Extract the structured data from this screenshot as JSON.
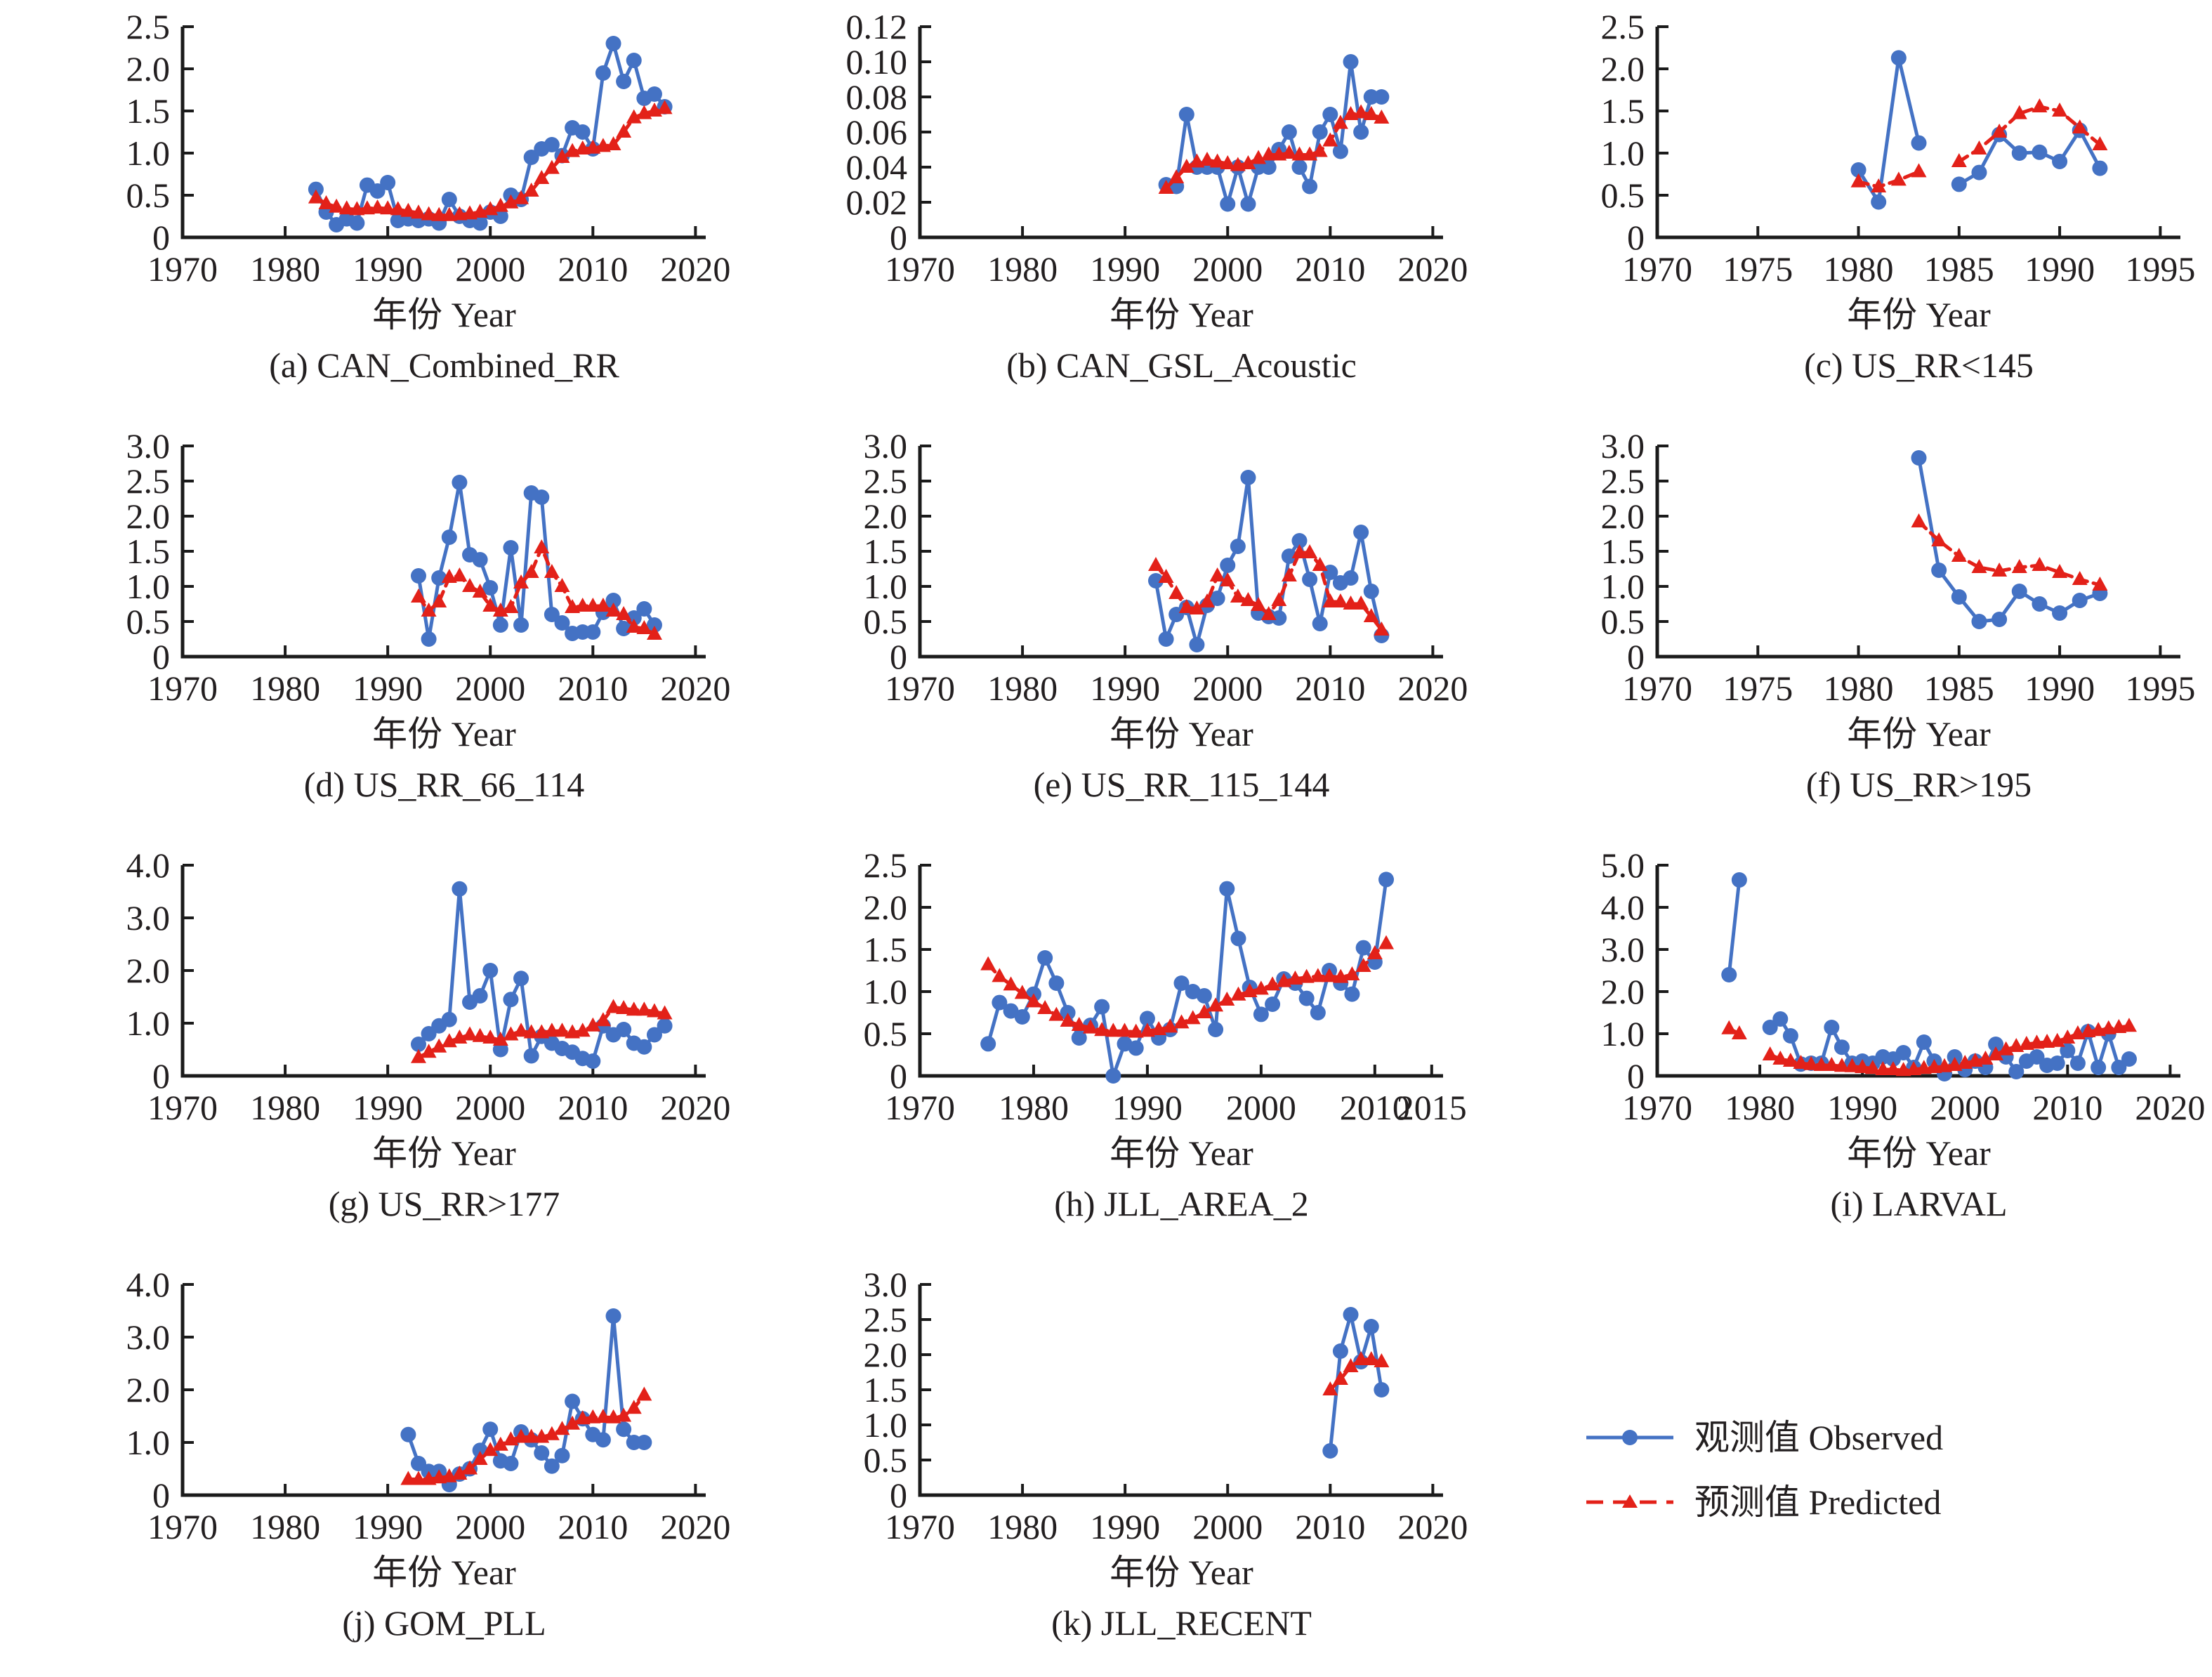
{
  "colors": {
    "observed": "#4472c4",
    "predicted": "#e32119",
    "axis": "#1b1b1b",
    "text": "#231f20"
  },
  "legend": {
    "observed_label": "观测值 Observed",
    "predicted_label": "预测值 Predicted"
  },
  "chart_data": [
    {
      "type": "line",
      "caption": "(a) CAN_Combined_RR",
      "xlabel": "年份 Year",
      "xlim": [
        1970,
        2021
      ],
      "xticks": [
        1970,
        1980,
        1990,
        2000,
        2010,
        2020
      ],
      "ylim": [
        0,
        2.5
      ],
      "yticks": [
        0,
        0.5,
        1.0,
        1.5,
        2.0,
        2.5
      ],
      "ytick_labels": [
        "0",
        "0.5",
        "1.0",
        "1.5",
        "2.0",
        "2.5"
      ],
      "series": [
        {
          "name": "观测值 Observed",
          "start_year": 1983,
          "values": [
            0.57,
            0.3,
            0.15,
            0.22,
            0.17,
            0.62,
            0.55,
            0.65,
            0.2,
            0.22,
            0.2,
            0.22,
            0.17,
            0.45,
            0.25,
            0.2,
            0.17,
            0.3,
            0.25,
            0.5,
            0.45,
            0.95,
            1.05,
            1.1,
            0.97,
            1.3,
            1.25,
            1.05,
            1.95,
            2.3,
            1.85,
            2.1,
            1.65,
            1.7,
            1.55
          ]
        },
        {
          "name": "预测值 Predicted",
          "start_year": 1983,
          "values": [
            0.47,
            0.4,
            0.36,
            0.34,
            0.33,
            0.34,
            0.35,
            0.34,
            0.33,
            0.31,
            0.29,
            0.27,
            0.26,
            0.26,
            0.27,
            0.28,
            0.3,
            0.33,
            0.37,
            0.41,
            0.46,
            0.55,
            0.7,
            0.82,
            0.95,
            1.02,
            1.05,
            1.06,
            1.08,
            1.1,
            1.25,
            1.42,
            1.47,
            1.5,
            1.53
          ]
        }
      ]
    },
    {
      "type": "line",
      "caption": "(b) CAN_GSL_Acoustic",
      "xlabel": "年份 Year",
      "xlim": [
        1970,
        2021
      ],
      "xticks": [
        1970,
        1980,
        1990,
        2000,
        2010,
        2020
      ],
      "ylim": [
        0,
        0.12
      ],
      "yticks": [
        0,
        0.02,
        0.04,
        0.06,
        0.08,
        0.1,
        0.12
      ],
      "ytick_labels": [
        "0",
        "0.02",
        "0.04",
        "0.06",
        "0.08",
        "0.10",
        "0.12"
      ],
      "series": [
        {
          "name": "观测值 Observed",
          "start_year": 1994,
          "values": [
            0.03,
            0.029,
            0.07,
            0.04,
            0.04,
            0.04,
            0.019,
            0.04,
            0.019,
            0.04,
            0.04,
            0.05,
            0.06,
            0.04,
            0.029,
            0.06,
            0.07,
            0.049,
            0.1,
            0.06,
            0.08,
            0.08
          ]
        },
        {
          "name": "预测值 Predicted",
          "start_year": 1994,
          "values": [
            0.028,
            0.034,
            0.04,
            0.043,
            0.044,
            0.043,
            0.042,
            0.041,
            0.042,
            0.045,
            0.047,
            0.047,
            0.048,
            0.047,
            0.047,
            0.049,
            0.055,
            0.065,
            0.07,
            0.071,
            0.07,
            0.068
          ]
        }
      ]
    },
    {
      "type": "line",
      "caption": "(c) US_RR<145",
      "xlabel": "年份 Year",
      "xlim": [
        1970,
        1996
      ],
      "xticks": [
        1970,
        1975,
        1980,
        1985,
        1990,
        1995
      ],
      "ylim": [
        0,
        2.5
      ],
      "yticks": [
        0,
        0.5,
        1.0,
        1.5,
        2.0,
        2.5
      ],
      "ytick_labels": [
        "0",
        "0.5",
        "1.0",
        "1.5",
        "2.0",
        "2.5"
      ],
      "series": [
        {
          "name": "观测值 Observed",
          "start_year": 1980,
          "values": [
            0.8,
            0.42,
            2.13,
            1.12,
            null,
            0.63,
            0.77,
            1.22,
            1.0,
            1.01,
            0.9,
            1.27,
            0.82
          ]
        },
        {
          "name": "预测值 Predicted",
          "start_year": 1980,
          "values": [
            0.66,
            0.6,
            0.68,
            0.78,
            null,
            0.9,
            1.05,
            1.25,
            1.47,
            1.55,
            1.5,
            1.3,
            1.1
          ]
        }
      ]
    },
    {
      "type": "line",
      "caption": "(d) US_RR_66_114",
      "xlabel": "年份 Year",
      "xlim": [
        1970,
        2021
      ],
      "xticks": [
        1970,
        1980,
        1990,
        2000,
        2010,
        2020
      ],
      "ylim": [
        0,
        3.0
      ],
      "yticks": [
        0,
        0.5,
        1.0,
        1.5,
        2.0,
        2.5,
        3.0
      ],
      "ytick_labels": [
        "0",
        "0.5",
        "1.0",
        "1.5",
        "2.0",
        "2.5",
        "3.0"
      ],
      "series": [
        {
          "name": "观测值 Observed",
          "start_year": 1993,
          "values": [
            1.15,
            0.25,
            1.12,
            1.7,
            2.48,
            1.45,
            1.38,
            0.98,
            0.45,
            1.55,
            0.45,
            2.33,
            2.27,
            0.6,
            0.48,
            0.33,
            0.35,
            0.35,
            0.63,
            0.8,
            0.4,
            0.55,
            0.68,
            0.45
          ]
        },
        {
          "name": "预测值 Predicted",
          "start_year": 1993,
          "values": [
            0.85,
            0.65,
            0.78,
            1.13,
            1.15,
            1.0,
            0.92,
            0.72,
            0.65,
            0.7,
            1.05,
            1.2,
            1.55,
            1.2,
            1.0,
            0.7,
            0.72,
            0.72,
            0.72,
            0.65,
            0.6,
            0.42,
            0.4,
            0.32
          ]
        }
      ]
    },
    {
      "type": "line",
      "caption": "(e) US_RR_115_144",
      "xlabel": "年份 Year",
      "xlim": [
        1970,
        2021
      ],
      "xticks": [
        1970,
        1980,
        1990,
        2000,
        2010,
        2020
      ],
      "ylim": [
        0,
        3.0
      ],
      "yticks": [
        0,
        0.5,
        1.0,
        1.5,
        2.0,
        2.5,
        3.0
      ],
      "ytick_labels": [
        "0",
        "0.5",
        "1.0",
        "1.5",
        "2.0",
        "2.5",
        "3.0"
      ],
      "series": [
        {
          "name": "观测值 Observed",
          "start_year": 1993,
          "values": [
            1.08,
            0.25,
            0.6,
            0.7,
            0.17,
            0.73,
            0.83,
            1.3,
            1.57,
            2.55,
            0.62,
            0.57,
            0.55,
            1.43,
            1.65,
            1.1,
            0.47,
            1.2,
            1.05,
            1.12,
            1.77,
            0.93,
            0.3
          ]
        },
        {
          "name": "预测值 Predicted",
          "start_year": 1993,
          "values": [
            1.3,
            1.13,
            0.9,
            0.7,
            0.68,
            0.78,
            1.15,
            1.08,
            0.85,
            0.8,
            0.73,
            0.6,
            0.8,
            1.15,
            1.48,
            1.48,
            1.3,
            0.78,
            0.78,
            0.75,
            0.75,
            0.57,
            0.38
          ]
        }
      ]
    },
    {
      "type": "line",
      "caption": "(f) US_RR>195",
      "xlabel": "年份 Year",
      "xlim": [
        1970,
        1996
      ],
      "xticks": [
        1970,
        1975,
        1980,
        1985,
        1990,
        1995
      ],
      "ylim": [
        0,
        3.0
      ],
      "yticks": [
        0,
        0.5,
        1.0,
        1.5,
        2.0,
        2.5,
        3.0
      ],
      "ytick_labels": [
        "0",
        "0.5",
        "1.0",
        "1.5",
        "2.0",
        "2.5",
        "3.0"
      ],
      "series": [
        {
          "name": "观测值 Observed",
          "start_year": 1983,
          "values": [
            2.83,
            1.23,
            0.85,
            0.5,
            0.53,
            0.93,
            0.75,
            0.62,
            0.8,
            0.9
          ]
        },
        {
          "name": "预测值 Predicted",
          "start_year": 1983,
          "values": [
            1.92,
            1.65,
            1.43,
            1.27,
            1.22,
            1.27,
            1.3,
            1.2,
            1.1,
            1.02
          ]
        }
      ]
    },
    {
      "type": "line",
      "caption": "(g) US_RR>177",
      "xlabel": "年份 Year",
      "xlim": [
        1970,
        2021
      ],
      "xticks": [
        1970,
        1980,
        1990,
        2000,
        2010,
        2020
      ],
      "ylim": [
        0,
        4.0
      ],
      "yticks": [
        0,
        1.0,
        2.0,
        3.0,
        4.0
      ],
      "ytick_labels": [
        "0",
        "1.0",
        "2.0",
        "3.0",
        "4.0"
      ],
      "series": [
        {
          "name": "观测值 Observed",
          "start_year": 1993,
          "values": [
            0.6,
            0.8,
            0.95,
            1.07,
            3.55,
            1.4,
            1.52,
            2.0,
            0.5,
            1.45,
            1.85,
            0.38,
            0.75,
            0.62,
            0.52,
            0.45,
            0.33,
            0.28,
            0.95,
            0.78,
            0.88,
            0.62,
            0.55,
            0.78,
            0.95
          ]
        },
        {
          "name": "预测值 Predicted",
          "start_year": 1993,
          "values": [
            0.35,
            0.45,
            0.55,
            0.65,
            0.72,
            0.78,
            0.75,
            0.72,
            0.68,
            0.78,
            0.85,
            0.82,
            0.82,
            0.85,
            0.85,
            0.82,
            0.85,
            0.95,
            1.05,
            1.3,
            1.28,
            1.25,
            1.25,
            1.22,
            1.18
          ]
        }
      ]
    },
    {
      "type": "line",
      "caption": "(h) JLL_AREA_2",
      "xlabel": "年份 Year",
      "xlim": [
        1970,
        2016
      ],
      "xticks": [
        1970,
        1980,
        1990,
        2000,
        2010,
        2015
      ],
      "ylim": [
        0,
        2.5
      ],
      "yticks": [
        0,
        0.5,
        1.0,
        1.5,
        2.0,
        2.5
      ],
      "ytick_labels": [
        "0",
        "0.5",
        "1.0",
        "1.5",
        "2.0",
        "2.5"
      ],
      "series": [
        {
          "name": "观测值 Observed",
          "start_year": 1976,
          "values": [
            0.38,
            0.87,
            0.77,
            0.7,
            0.97,
            1.4,
            1.1,
            0.75,
            0.45,
            0.6,
            0.82,
            0.0,
            0.38,
            0.33,
            0.68,
            0.45,
            0.55,
            1.1,
            1.0,
            0.95,
            0.55,
            2.22,
            1.63,
            1.05,
            0.73,
            0.85,
            1.15,
            1.1,
            0.92,
            0.75,
            1.25,
            1.1,
            0.97,
            1.52,
            1.35,
            2.33
          ]
        },
        {
          "name": "预测值 Predicted",
          "start_year": 1976,
          "values": [
            1.32,
            1.18,
            1.08,
            0.98,
            0.88,
            0.8,
            0.72,
            0.65,
            0.6,
            0.57,
            0.54,
            0.53,
            0.53,
            0.52,
            0.53,
            0.55,
            0.58,
            0.63,
            0.68,
            0.75,
            0.83,
            0.9,
            0.96,
            1.0,
            1.03,
            1.08,
            1.12,
            1.15,
            1.17,
            1.18,
            1.18,
            1.17,
            1.2,
            1.3,
            1.45,
            1.57
          ]
        }
      ]
    },
    {
      "type": "line",
      "caption": "(i) LARVAL",
      "xlabel": "年份 Year",
      "xlim": [
        1970,
        2021
      ],
      "xticks": [
        1970,
        1980,
        1990,
        2000,
        2010,
        2020
      ],
      "ylim": [
        0,
        5.0
      ],
      "yticks": [
        0,
        1.0,
        2.0,
        3.0,
        4.0,
        5.0
      ],
      "ytick_labels": [
        "0",
        "1.0",
        "2.0",
        "3.0",
        "4.0",
        "5.0"
      ],
      "series": [
        {
          "name": "观测值 Observed",
          "start_year": 1977,
          "values": [
            2.4,
            4.65,
            null,
            null,
            1.15,
            1.35,
            0.95,
            0.28,
            0.3,
            0.3,
            1.15,
            0.68,
            0.3,
            0.35,
            0.3,
            0.45,
            0.4,
            0.55,
            0.2,
            0.8,
            0.35,
            0.05,
            0.45,
            0.15,
            0.35,
            0.2,
            0.75,
            0.45,
            0.1,
            0.35,
            0.45,
            0.25,
            0.3,
            0.6,
            0.3,
            1.05,
            0.2,
            1.0,
            0.2,
            0.4
          ]
        },
        {
          "name": "预测值 Predicted",
          "start_year": 1977,
          "values": [
            1.12,
            1.0,
            null,
            null,
            0.5,
            0.4,
            0.35,
            0.3,
            0.27,
            0.25,
            0.25,
            0.23,
            0.22,
            0.2,
            0.18,
            0.15,
            0.15,
            0.13,
            0.15,
            0.18,
            0.2,
            0.22,
            0.25,
            0.3,
            0.35,
            0.4,
            0.5,
            0.62,
            0.7,
            0.75,
            0.78,
            0.8,
            0.82,
            0.9,
            1.0,
            1.05,
            1.08,
            1.12,
            1.15,
            1.18
          ]
        }
      ]
    },
    {
      "type": "line",
      "caption": "(j) GOM_PLL",
      "xlabel": "年份 Year",
      "xlim": [
        1970,
        2021
      ],
      "xticks": [
        1970,
        1980,
        1990,
        2000,
        2010,
        2020
      ],
      "ylim": [
        0,
        4.0
      ],
      "yticks": [
        0,
        1.0,
        2.0,
        3.0,
        4.0
      ],
      "ytick_labels": [
        "0",
        "1.0",
        "2.0",
        "3.0",
        "4.0"
      ],
      "series": [
        {
          "name": "观测值 Observed",
          "start_year": 1992,
          "values": [
            1.15,
            0.6,
            0.45,
            0.45,
            0.2,
            0.4,
            0.5,
            0.85,
            1.25,
            0.65,
            0.6,
            1.2,
            1.05,
            0.8,
            0.55,
            0.75,
            1.78,
            1.45,
            1.15,
            1.05,
            3.4,
            1.25,
            1.0,
            1.0
          ]
        },
        {
          "name": "预测值 Predicted",
          "start_year": 1992,
          "values": [
            0.3,
            0.3,
            0.3,
            0.33,
            0.35,
            0.4,
            0.5,
            0.68,
            0.85,
            0.95,
            1.05,
            1.1,
            1.1,
            1.1,
            1.15,
            1.25,
            1.35,
            1.45,
            1.47,
            1.48,
            1.47,
            1.5,
            1.65,
            1.9
          ]
        }
      ]
    },
    {
      "type": "line",
      "caption": "(k) JLL_RECENT",
      "xlabel": "年份 Year",
      "xlim": [
        1970,
        2021
      ],
      "xticks": [
        1970,
        1980,
        1990,
        2000,
        2010,
        2020
      ],
      "ylim": [
        0,
        3.0
      ],
      "yticks": [
        0,
        0.5,
        1.0,
        1.5,
        2.0,
        2.5,
        3.0
      ],
      "ytick_labels": [
        "0",
        "0.5",
        "1.0",
        "1.5",
        "2.0",
        "2.5",
        "3.0"
      ],
      "series": [
        {
          "name": "观测值 Observed",
          "start_year": 2010,
          "values": [
            0.63,
            2.05,
            2.57,
            1.9,
            2.4,
            1.5
          ]
        },
        {
          "name": "预测值 Predicted",
          "start_year": 2010,
          "values": [
            1.5,
            1.65,
            1.83,
            1.93,
            1.93,
            1.9
          ]
        }
      ]
    }
  ]
}
